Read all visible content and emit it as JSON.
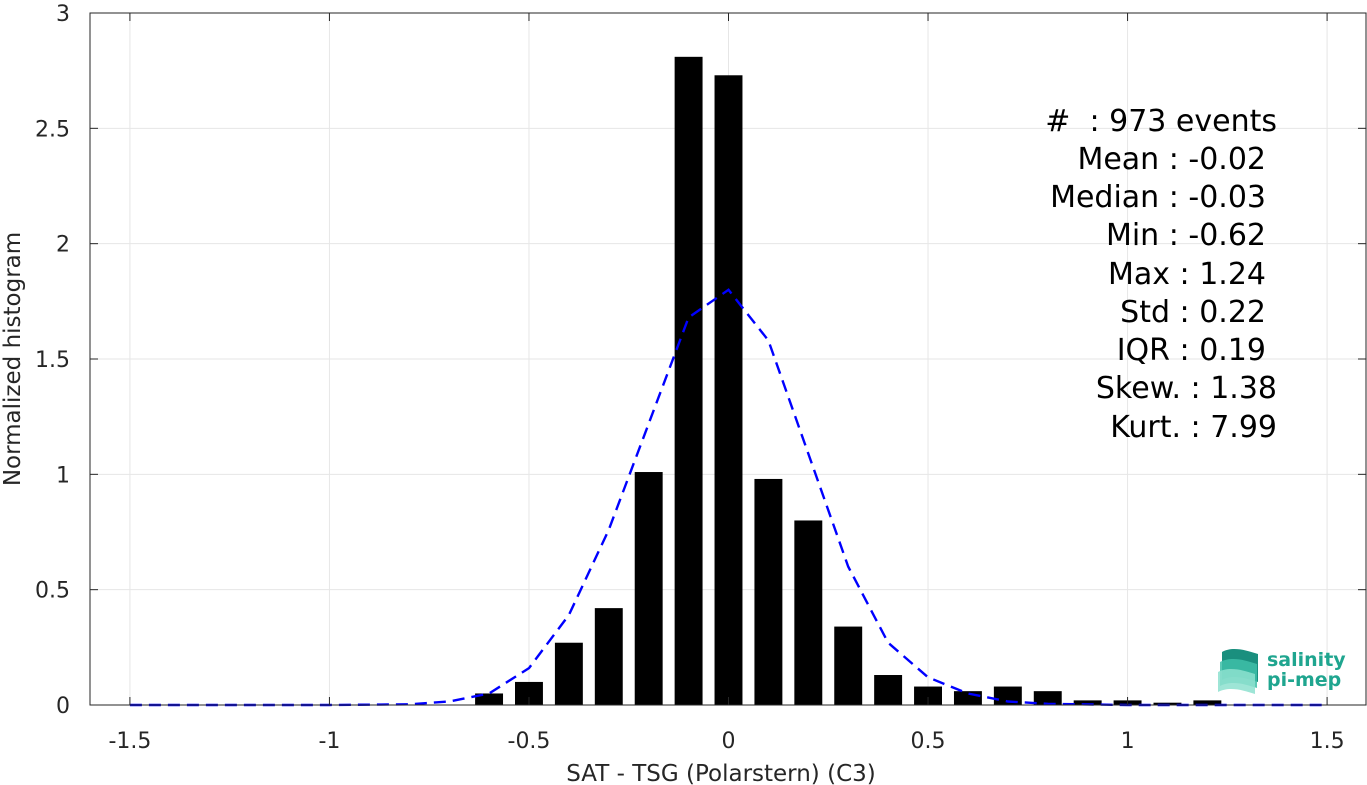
{
  "chart_data": {
    "type": "bar",
    "title": "",
    "xlabel": "SAT - TSG (Polarstern) (C3)",
    "ylabel": "Normalized histogram",
    "xlim": [
      -1.6,
      1.6
    ],
    "ylim": [
      0,
      3
    ],
    "xticks": [
      "-1.5",
      "-1",
      "-0.5",
      "0",
      "0.5",
      "1",
      "1.5"
    ],
    "xtick_values": [
      -1.5,
      -1,
      -0.5,
      0,
      0.5,
      1,
      1.5
    ],
    "yticks": [
      "0",
      "0.5",
      "1",
      "1.5",
      "2",
      "2.5",
      "3"
    ],
    "ytick_values": [
      0,
      0.5,
      1,
      1.5,
      2,
      2.5,
      3
    ],
    "grid": true,
    "bar_width": 0.07,
    "bar_color": "#000000",
    "bins": [
      {
        "x": -0.6,
        "y": 0.05
      },
      {
        "x": -0.5,
        "y": 0.1
      },
      {
        "x": -0.4,
        "y": 0.27
      },
      {
        "x": -0.3,
        "y": 0.42
      },
      {
        "x": -0.2,
        "y": 1.01
      },
      {
        "x": -0.1,
        "y": 2.81
      },
      {
        "x": 0.0,
        "y": 2.73
      },
      {
        "x": 0.1,
        "y": 0.98
      },
      {
        "x": 0.2,
        "y": 0.8
      },
      {
        "x": 0.3,
        "y": 0.34
      },
      {
        "x": 0.4,
        "y": 0.13
      },
      {
        "x": 0.5,
        "y": 0.08
      },
      {
        "x": 0.6,
        "y": 0.06
      },
      {
        "x": 0.7,
        "y": 0.08
      },
      {
        "x": 0.8,
        "y": 0.06
      },
      {
        "x": 0.9,
        "y": 0.02
      },
      {
        "x": 1.0,
        "y": 0.02
      },
      {
        "x": 1.1,
        "y": 0.01
      },
      {
        "x": 1.2,
        "y": 0.02
      }
    ],
    "fit_curve": {
      "color": "#0000ff",
      "style": "dashed",
      "points": [
        [
          -1.5,
          0.0
        ],
        [
          -1.0,
          0.0
        ],
        [
          -0.8,
          0.003
        ],
        [
          -0.7,
          0.015
        ],
        [
          -0.6,
          0.05
        ],
        [
          -0.5,
          0.16
        ],
        [
          -0.4,
          0.39
        ],
        [
          -0.3,
          0.76
        ],
        [
          -0.2,
          1.22
        ],
        [
          -0.1,
          1.68
        ],
        [
          0.0,
          1.8
        ],
        [
          0.1,
          1.58
        ],
        [
          0.2,
          1.09
        ],
        [
          0.3,
          0.6
        ],
        [
          0.4,
          0.27
        ],
        [
          0.5,
          0.12
        ],
        [
          0.6,
          0.05
        ],
        [
          0.7,
          0.015
        ],
        [
          0.8,
          0.005
        ],
        [
          1.0,
          0.0
        ],
        [
          1.5,
          0.0
        ]
      ]
    }
  },
  "stats": {
    "events": "#  : 973 events",
    "mean": "Mean : -0.02",
    "median": "Median : -0.03",
    "min": "Min : -0.62",
    "max": "Max : 1.24",
    "std": "Std : 0.22",
    "iqr": "IQR : 0.19",
    "skew": "Skew. : 1.38",
    "kurt": "Kurt. : 7.99"
  },
  "logo": {
    "line1": "salinity",
    "line2": "pi-mep",
    "icon": "salinity-wave-logo-icon",
    "color": "#1fa58f"
  }
}
